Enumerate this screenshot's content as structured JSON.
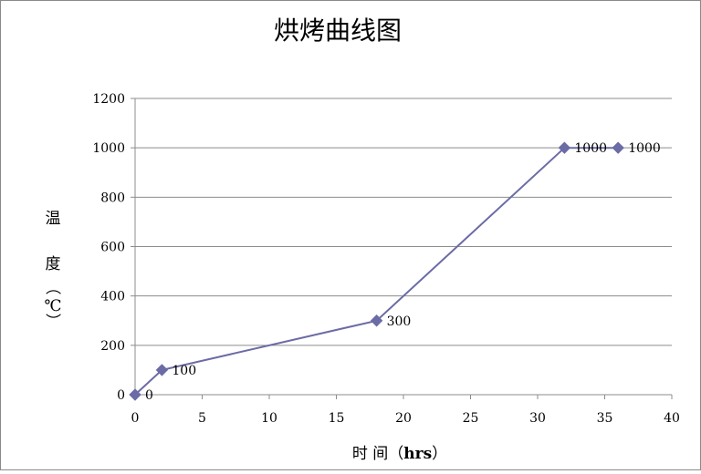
{
  "chart_data": {
    "type": "line",
    "title": "烘烤曲线图",
    "xlabel": {
      "prefix": "时  间（",
      "unit": "hrs",
      "suffix": "）"
    },
    "ylabel_chars": [
      "温",
      "度",
      "（",
      "℃",
      "）"
    ],
    "xlim": [
      0,
      40
    ],
    "ylim": [
      0,
      1200
    ],
    "x_ticks": [
      0,
      5,
      10,
      15,
      20,
      25,
      30,
      35,
      40
    ],
    "y_ticks": [
      0,
      200,
      400,
      600,
      800,
      1000,
      1200
    ],
    "grid": {
      "horizontal": true,
      "vertical": false
    },
    "series": [
      {
        "x": [
          0,
          2,
          18,
          32,
          36
        ],
        "values": [
          0,
          100,
          300,
          1000,
          1000
        ],
        "labels": [
          "0",
          "100",
          "300",
          "1000",
          "1000"
        ],
        "color": "#6b6ba6",
        "marker": "diamond"
      }
    ]
  }
}
